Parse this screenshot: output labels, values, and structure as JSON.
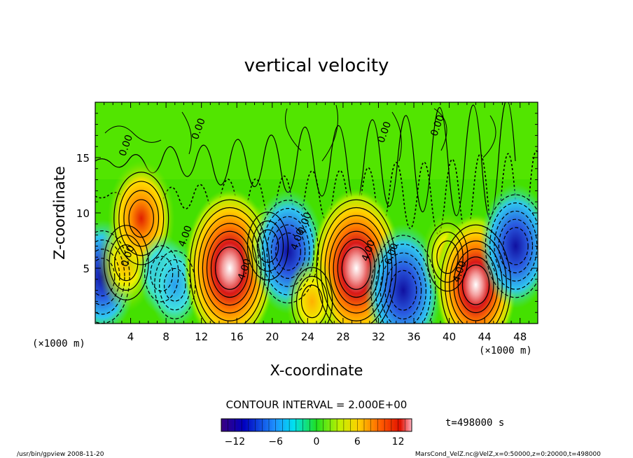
{
  "chart_data": {
    "type": "heatmap",
    "title": "vertical velocity",
    "xlabel": "X-coordinate",
    "ylabel": "Z-coordinate",
    "x_unit_left": "(×1000 m)",
    "x_unit_right": "(×1000 m)",
    "xlim": [
      0,
      50
    ],
    "ylim": [
      0,
      20
    ],
    "xticks": [
      4,
      8,
      12,
      16,
      20,
      24,
      28,
      32,
      36,
      40,
      44,
      48
    ],
    "yticks": [
      5,
      10,
      15
    ],
    "contour_interval": "CONTOUR INTERVAL = 2.000E+00",
    "contour_labels": [
      "0.00",
      "0.00",
      "0.00",
      "0.00",
      "0.00",
      "0.00",
      "4.00",
      "4.00",
      "4.00",
      "4.00",
      "4.00",
      "6.00"
    ],
    "time_label": "t=498000 s",
    "colorbar": {
      "min": -14,
      "max": 14,
      "ticks": [
        -12,
        -6,
        0,
        6,
        12
      ]
    },
    "cells": [
      {
        "x": 0.8,
        "z": 4.2,
        "value": -9
      },
      {
        "x": 3.5,
        "z": 5.5,
        "value": 7
      },
      {
        "x": 5.2,
        "z": 9.5,
        "value": 9
      },
      {
        "x": 7.5,
        "z": 4.5,
        "value": -5
      },
      {
        "x": 9.0,
        "z": 3.5,
        "value": -6
      },
      {
        "x": 15.2,
        "z": 5.0,
        "value": 14
      },
      {
        "x": 19.5,
        "z": 7.0,
        "value": 6
      },
      {
        "x": 21.8,
        "z": 6.5,
        "value": -10
      },
      {
        "x": 29.5,
        "z": 5.0,
        "value": 14
      },
      {
        "x": 24.5,
        "z": 2.0,
        "value": 6
      },
      {
        "x": 34.8,
        "z": 3.0,
        "value": -11
      },
      {
        "x": 39.8,
        "z": 6.0,
        "value": 6
      },
      {
        "x": 43.0,
        "z": 3.5,
        "value": 12
      },
      {
        "x": 47.5,
        "z": 7.0,
        "value": -10
      }
    ]
  },
  "footer": {
    "left": "/usr/bin/gpview  2008-11-20",
    "right": "MarsCond_VelZ.nc@VelZ,x=0:50000,z=0:20000,t=498000"
  }
}
